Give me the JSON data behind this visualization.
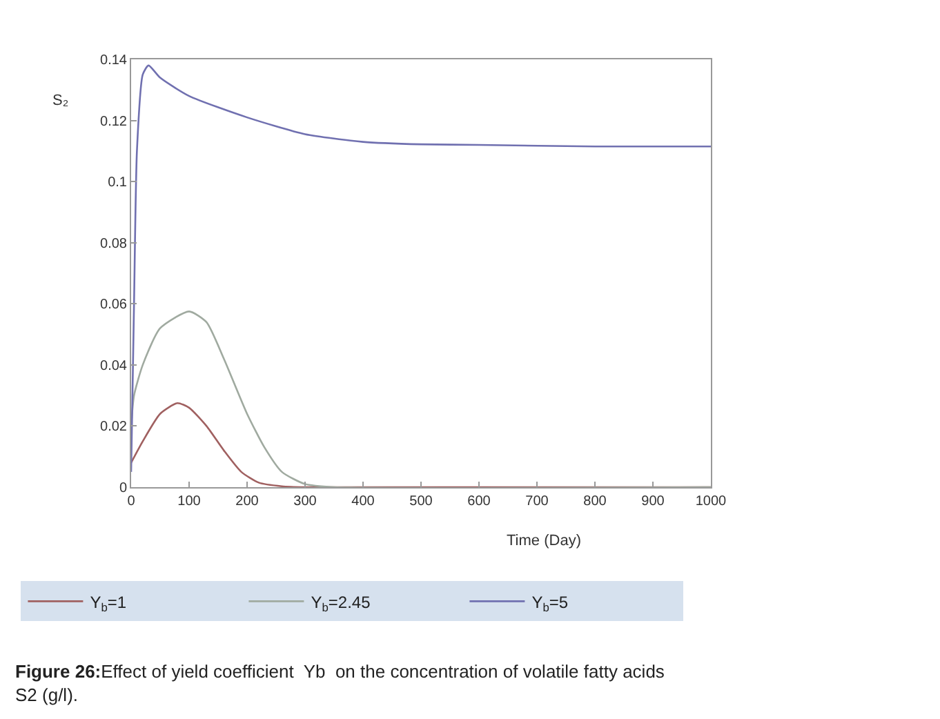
{
  "chart_data": {
    "type": "line",
    "title": "Figure 26:",
    "xlabel": "Time (Day)",
    "ylabel": "S₂",
    "annotations": [
      "Effect of yield coefficient  Yb  on the concentration of volatile fatty acids S2 (g/l)."
    ],
    "xlim": [
      0,
      1000
    ],
    "xticks": [
      0,
      100,
      200,
      300,
      400,
      500,
      600,
      700,
      800,
      900,
      1000
    ],
    "ylim": [
      0,
      0.14
    ],
    "yticks": [
      0,
      0.02,
      0.04,
      0.06,
      0.08,
      0.1,
      0.12,
      0.14
    ],
    "legend": "bottom",
    "marker": "none",
    "line_style": "solid",
    "series": [
      {
        "name": "Y$_{b}$=1",
        "color": "#a06060",
        "x": [
          0,
          20,
          50,
          80,
          100,
          130,
          160,
          190,
          220,
          260,
          300,
          1000
        ],
        "values": [
          0.008,
          0.015,
          0.024,
          0.0275,
          0.026,
          0.02,
          0.012,
          0.005,
          0.0015,
          0.0003,
          0,
          0
        ]
      },
      {
        "name": "Y$_{b}$=2.45",
        "color": "#a0aaa0",
        "x": [
          0,
          5,
          20,
          50,
          100,
          130,
          160,
          200,
          230,
          260,
          300,
          350,
          1000
        ],
        "values": [
          0.02,
          0.03,
          0.04,
          0.052,
          0.0575,
          0.054,
          0.042,
          0.024,
          0.013,
          0.005,
          0.001,
          0,
          0
        ]
      },
      {
        "name": "Y$_{b}$=5",
        "color": "#7070b0",
        "x": [
          0,
          5,
          10,
          20,
          30,
          50,
          100,
          200,
          300,
          400,
          500,
          600,
          800,
          1000
        ],
        "values": [
          0.005,
          0.06,
          0.11,
          0.135,
          0.138,
          0.134,
          0.128,
          0.121,
          0.1155,
          0.113,
          0.1122,
          0.112,
          0.1115,
          0.1115
        ]
      }
    ]
  }
}
